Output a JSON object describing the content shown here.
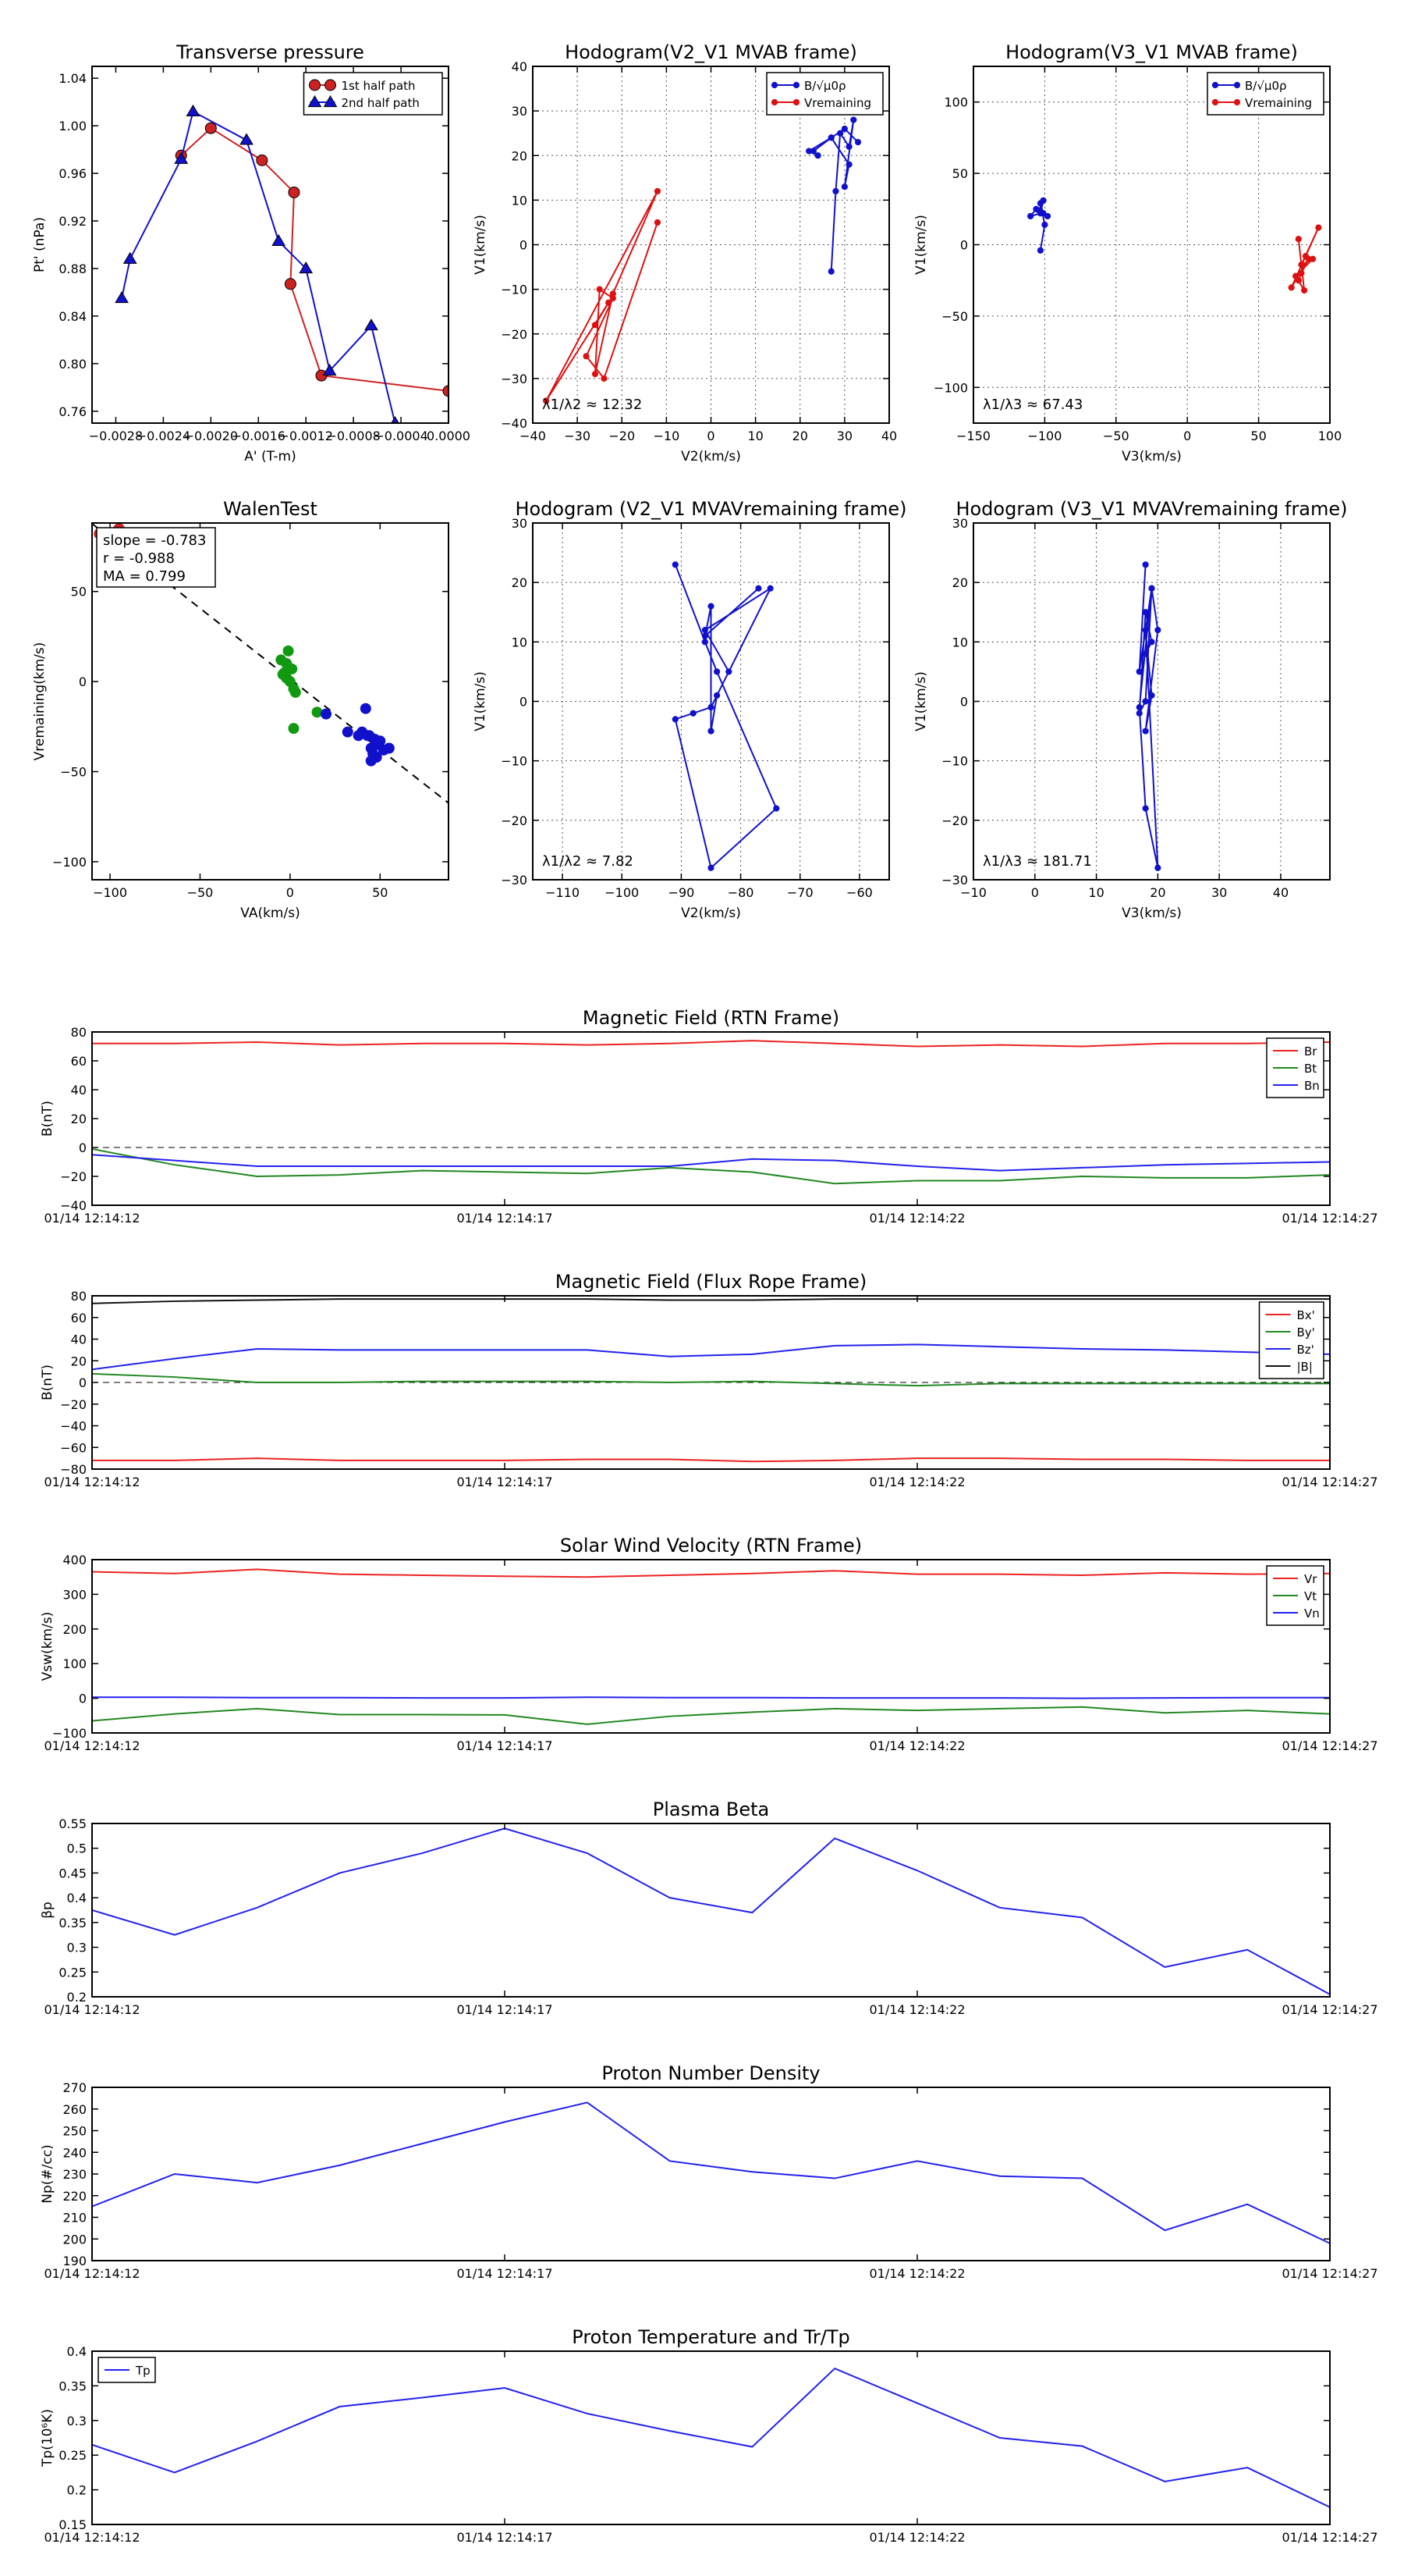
{
  "figure": {
    "time_ticks": [
      "01/14 12:14:12",
      "01/14 12:14:17",
      "01/14 12:14:22",
      "01/14 12:14:27"
    ]
  },
  "chart_data": [
    {
      "id": "pt",
      "type": "line",
      "title": "Transverse pressure",
      "xlabel": "A' (T-m)",
      "ylabel": "Pt' (nPa)",
      "xlim": [
        -0.003,
        0.0
      ],
      "ylim": [
        0.75,
        1.05
      ],
      "xticks": [
        -0.0028,
        -0.0024,
        -0.002,
        -0.0016,
        -0.0012,
        -0.0008,
        -0.0004,
        0.0
      ],
      "xtick_labels": [
        "−0.0028",
        "−0.0024",
        "−0.0020",
        "−0.0016",
        "−0.0012",
        "−0.0008",
        "−0.0004",
        "0.0000"
      ],
      "yticks": [
        0.76,
        0.8,
        0.84,
        0.88,
        0.92,
        0.96,
        1.0,
        1.04
      ],
      "ytick_labels": [
        "0.76",
        "0.80",
        "0.84",
        "0.88",
        "0.92",
        "0.96",
        "1.00",
        "1.04"
      ],
      "legend": "top-right",
      "series": [
        {
          "name": "1st half path",
          "color": "#cc2222",
          "marker": "circle",
          "x": [
            -0.00225,
            -0.002,
            -0.00157,
            -0.0013,
            -0.00133,
            -0.00107,
            0.0
          ],
          "y": [
            0.975,
            0.998,
            0.971,
            0.944,
            0.867,
            0.79,
            0.777
          ]
        },
        {
          "name": "2nd half path",
          "color": "#1111cc",
          "marker": "triangle",
          "x": [
            -0.00275,
            -0.00268,
            -0.00225,
            -0.00215,
            -0.0017,
            -0.00143,
            -0.0012,
            -0.001,
            -0.00065,
            -0.00045
          ],
          "y": [
            0.855,
            0.888,
            0.972,
            1.012,
            0.988,
            0.903,
            0.88,
            0.794,
            0.832,
            0.75
          ]
        }
      ]
    },
    {
      "id": "hodo1",
      "type": "line",
      "title": "Hodogram(V2_V1 MVAB frame)",
      "xlabel": "V2(km/s)",
      "ylabel": "V1(km/s)",
      "xlim": [
        -40,
        40
      ],
      "ylim": [
        -40,
        40
      ],
      "xticks": [
        -40,
        -30,
        -20,
        -10,
        0,
        10,
        20,
        30,
        40
      ],
      "yticks": [
        -40,
        -30,
        -20,
        -10,
        0,
        10,
        20,
        30,
        40
      ],
      "grid": true,
      "legend": "top-right",
      "annotation": "λ1/λ2 ≈ 12.32",
      "series": [
        {
          "name": "B/√μ0ρ",
          "color": "#1111cc",
          "x": [
            27,
            28,
            29,
            31,
            32,
            30,
            31,
            27,
            22,
            24,
            23,
            27,
            30,
            33
          ],
          "y": [
            -6,
            12,
            25,
            22,
            28,
            13,
            18,
            24,
            21,
            20,
            21,
            24,
            26,
            23
          ]
        },
        {
          "name": "Vremaining",
          "color": "#dd1111",
          "x": [
            -12,
            -24,
            -28,
            -22,
            -25,
            -26,
            -22,
            -12,
            -37,
            -23,
            -26
          ],
          "y": [
            5,
            -30,
            -25,
            -12,
            -10,
            -29,
            -11,
            12,
            -35,
            -13,
            -18
          ]
        }
      ]
    },
    {
      "id": "hodo2",
      "type": "line",
      "title": "Hodogram(V3_V1 MVAB frame)",
      "xlabel": "V3(km/s)",
      "ylabel": "V1(km/s)",
      "xlim": [
        -150,
        100
      ],
      "ylim": [
        -125,
        125
      ],
      "xticks": [
        -150,
        -100,
        -50,
        0,
        50,
        100
      ],
      "yticks": [
        -100,
        -50,
        0,
        50,
        100
      ],
      "grid": true,
      "legend": "top-right",
      "annotation": "λ1/λ3 ≈ 67.43",
      "series": [
        {
          "name": "B/√μ0ρ",
          "color": "#1111cc",
          "x": [
            -103,
            -100,
            -103,
            -101,
            -98,
            -106,
            -110,
            -103,
            -101,
            -104
          ],
          "y": [
            -4,
            14,
            29,
            22,
            20,
            25,
            20,
            22,
            31,
            24
          ]
        },
        {
          "name": "Vremaining",
          "color": "#dd1111",
          "x": [
            78,
            82,
            76,
            88,
            80,
            92,
            83,
            73,
            85,
            80,
            78
          ],
          "y": [
            4,
            -32,
            -22,
            -10,
            -14,
            12,
            -8,
            -30,
            -10,
            -20,
            -25
          ]
        }
      ]
    },
    {
      "id": "walen",
      "type": "scatter",
      "title": "WalenTest",
      "xlabel": "VA(km/s)",
      "ylabel": "Vremaining(km/s)",
      "xlim": [
        -110,
        88
      ],
      "ylim": [
        -110,
        88
      ],
      "xticks": [
        -100,
        -50,
        0,
        50
      ],
      "yticks": [
        -100,
        -50,
        0,
        50
      ],
      "annotation": [
        "slope = -0.783",
        "r = -0.988",
        "MA = 0.799"
      ],
      "fit": {
        "slope": -0.783,
        "intercept": 1.5
      },
      "series": [
        {
          "name": "red",
          "color": "#cc2222",
          "x": [
            -106,
            -95,
            -100
          ],
          "y": [
            82,
            85,
            80
          ]
        },
        {
          "name": "green",
          "color": "#119911",
          "x": [
            -5,
            -2,
            -3,
            -2,
            0,
            2,
            3,
            -1,
            1,
            -4,
            15,
            2
          ],
          "y": [
            12,
            10,
            5,
            2,
            0,
            -4,
            -6,
            17,
            7,
            4,
            -17,
            -26
          ]
        },
        {
          "name": "blue",
          "color": "#1111cc",
          "x": [
            20,
            32,
            38,
            40,
            42,
            44,
            45,
            46,
            47,
            48,
            49,
            50,
            52,
            45,
            43,
            55
          ],
          "y": [
            -18,
            -28,
            -30,
            -28,
            -15,
            -30,
            -37,
            -40,
            -32,
            -42,
            -35,
            -33,
            -38,
            -44,
            -30,
            -37
          ]
        }
      ]
    },
    {
      "id": "hodo3",
      "type": "line",
      "title": "Hodogram (V2_V1 MVAVremaining frame)",
      "xlabel": "V2(km/s)",
      "ylabel": "V1(km/s)",
      "xlim": [
        -115,
        -55
      ],
      "ylim": [
        -30,
        30
      ],
      "xticks": [
        -110,
        -100,
        -90,
        -80,
        -70,
        -60
      ],
      "yticks": [
        -30,
        -20,
        -10,
        0,
        10,
        20,
        30
      ],
      "grid": true,
      "annotation": "λ1/λ2 ≈ 7.82",
      "series": [
        {
          "name": "B",
          "color": "#1111cc",
          "x": [
            -91,
            -86,
            -84,
            -74,
            -85,
            -91,
            -88,
            -85,
            -82,
            -86,
            -75,
            -84,
            -85,
            -85,
            -86,
            -77
          ],
          "y": [
            23,
            10,
            5,
            -18,
            -28,
            -3,
            -2,
            -1,
            5,
            12,
            19,
            1,
            -5,
            16,
            11,
            19
          ]
        }
      ]
    },
    {
      "id": "hodo4",
      "type": "line",
      "title": "Hodogram (V3_V1 MVAVremaining frame)",
      "xlabel": "V3(km/s)",
      "ylabel": "V1(km/s)",
      "xlim": [
        -10,
        48
      ],
      "ylim": [
        -30,
        30
      ],
      "xticks": [
        -10,
        0,
        10,
        20,
        30,
        40
      ],
      "yticks": [
        -30,
        -20,
        -10,
        0,
        10,
        20,
        30
      ],
      "grid": true,
      "annotation": "λ1/λ3 ≈ 181.71",
      "series": [
        {
          "name": "B",
          "color": "#1111cc",
          "x": [
            18,
            17,
            19,
            17,
            18,
            20,
            18,
            19,
            18,
            20,
            19,
            18,
            17,
            18,
            19,
            18
          ],
          "y": [
            23,
            5,
            19,
            -1,
            -18,
            -28,
            12,
            1,
            -5,
            12,
            19,
            0,
            -2,
            15,
            10,
            8
          ]
        }
      ]
    },
    {
      "id": "brtn",
      "type": "line",
      "title": "Magnetic Field (RTN Frame)",
      "ylabel": "B(nT)",
      "ylim": [
        -40,
        80
      ],
      "yticks": [
        -40,
        -20,
        0,
        20,
        40,
        60,
        80
      ],
      "x": [
        0,
        1,
        2,
        3,
        4,
        5,
        6,
        7,
        8,
        9,
        10,
        11,
        12,
        13,
        14,
        15
      ],
      "xticks": [
        0,
        5,
        10,
        15
      ],
      "zero_line": true,
      "legend": "top-right",
      "series": [
        {
          "name": "Br",
          "color": "#ee2222",
          "values": [
            72,
            72,
            73,
            71,
            72,
            72,
            71,
            72,
            74,
            72,
            70,
            71,
            70,
            72,
            72,
            73
          ]
        },
        {
          "name": "Bt",
          "color": "#228822",
          "values": [
            -1,
            -12,
            -20,
            -19,
            -16,
            -17,
            -18,
            -14,
            -17,
            -25,
            -23,
            -23,
            -20,
            -21,
            -21,
            -19
          ]
        },
        {
          "name": "Bn",
          "color": "#2222ee",
          "values": [
            -5,
            -9,
            -13,
            -13,
            -13,
            -13,
            -13,
            -13,
            -8,
            -9,
            -13,
            -16,
            -14,
            -12,
            -11,
            -10
          ]
        }
      ]
    },
    {
      "id": "bfr",
      "type": "line",
      "title": "Magnetic Field (Flux Rope Frame)",
      "ylabel": "B(nT)",
      "ylim": [
        -80,
        80
      ],
      "yticks": [
        -80,
        -60,
        -40,
        -20,
        0,
        20,
        40,
        60,
        80
      ],
      "x": [
        0,
        1,
        2,
        3,
        4,
        5,
        6,
        7,
        8,
        9,
        10,
        11,
        12,
        13,
        14,
        15
      ],
      "xticks": [
        0,
        5,
        10,
        15
      ],
      "zero_line": true,
      "legend": "top-right",
      "series": [
        {
          "name": "Bx'",
          "color": "#ee2222",
          "values": [
            -72,
            -72,
            -70,
            -72,
            -72,
            -72,
            -71,
            -71,
            -73,
            -72,
            -70,
            -70,
            -71,
            -71,
            -72,
            -72
          ]
        },
        {
          "name": "By'",
          "color": "#228822",
          "values": [
            8,
            5,
            0,
            0,
            1,
            1,
            1,
            0,
            1,
            -1,
            -3,
            -1,
            -1,
            -1,
            -1,
            -1
          ]
        },
        {
          "name": "Bz'",
          "color": "#2222ee",
          "values": [
            12,
            22,
            31,
            30,
            30,
            30,
            30,
            24,
            26,
            34,
            35,
            33,
            31,
            30,
            28,
            26
          ]
        },
        {
          "name": "|B|",
          "color": "#111111",
          "values": [
            73,
            75,
            76,
            77,
            77,
            77,
            77,
            76,
            76,
            77,
            77,
            77,
            77,
            77,
            77,
            77
          ]
        }
      ]
    },
    {
      "id": "vsw",
      "type": "line",
      "title": "Solar Wind Velocity (RTN Frame)",
      "ylabel": "Vsw(km/s)",
      "ylim": [
        -100,
        400
      ],
      "yticks": [
        -100,
        0,
        100,
        200,
        300,
        400
      ],
      "x": [
        0,
        1,
        2,
        3,
        4,
        5,
        6,
        7,
        8,
        9,
        10,
        11,
        12,
        13,
        14,
        15
      ],
      "xticks": [
        0,
        5,
        10,
        15
      ],
      "legend": "top-right",
      "series": [
        {
          "name": "Vr",
          "color": "#ee2222",
          "values": [
            365,
            360,
            372,
            358,
            355,
            352,
            350,
            355,
            360,
            368,
            358,
            358,
            355,
            362,
            358,
            360
          ]
        },
        {
          "name": "Vt",
          "color": "#228822",
          "values": [
            -65,
            -45,
            -30,
            -47,
            -47,
            -48,
            -75,
            -52,
            -40,
            -30,
            -35,
            -30,
            -25,
            -42,
            -35,
            -45
          ]
        },
        {
          "name": "Vn",
          "color": "#2222ee",
          "values": [
            3,
            3,
            2,
            2,
            1,
            1,
            3,
            2,
            2,
            1,
            1,
            1,
            0,
            1,
            2,
            2
          ]
        }
      ]
    },
    {
      "id": "beta",
      "type": "line",
      "title": "Plasma Beta",
      "ylabel": "βp",
      "ylim": [
        0.2,
        0.55
      ],
      "yticks": [
        0.2,
        0.25,
        0.3,
        0.35,
        0.4,
        0.45,
        0.5,
        0.55
      ],
      "x": [
        0,
        1,
        2,
        3,
        4,
        5,
        6,
        7,
        8,
        9,
        10,
        11,
        12,
        13,
        14,
        15
      ],
      "xticks": [
        0,
        5,
        10,
        15
      ],
      "series": [
        {
          "name": "beta",
          "color": "#2222ee",
          "values": [
            0.375,
            0.325,
            0.38,
            0.45,
            0.49,
            0.54,
            0.49,
            0.4,
            0.37,
            0.52,
            0.455,
            0.38,
            0.36,
            0.26,
            0.295,
            0.205
          ]
        }
      ]
    },
    {
      "id": "np",
      "type": "line",
      "title": "Proton Number Density",
      "ylabel": "Np(#/cc)",
      "ylim": [
        190,
        270
      ],
      "yticks": [
        190,
        200,
        210,
        220,
        230,
        240,
        250,
        260,
        270
      ],
      "x": [
        0,
        1,
        2,
        3,
        4,
        5,
        6,
        7,
        8,
        9,
        10,
        11,
        12,
        13,
        14,
        15
      ],
      "xticks": [
        0,
        5,
        10,
        15
      ],
      "series": [
        {
          "name": "Np",
          "color": "#2222ee",
          "values": [
            215,
            230,
            226,
            234,
            244,
            254,
            263,
            236,
            231,
            228,
            236,
            229,
            228,
            204,
            216,
            198
          ]
        }
      ]
    },
    {
      "id": "tp",
      "type": "line",
      "title": "Proton Temperature and Tr/Tp",
      "ylabel": "Tp(10⁶K)",
      "ylim": [
        0.15,
        0.4
      ],
      "yticks": [
        0.15,
        0.2,
        0.25,
        0.3,
        0.35,
        0.4
      ],
      "x": [
        0,
        1,
        2,
        3,
        4,
        5,
        6,
        7,
        8,
        9,
        10,
        11,
        12,
        13,
        14,
        15
      ],
      "xticks": [
        0,
        5,
        10,
        15
      ],
      "legend": "top-left",
      "series": [
        {
          "name": "Tp",
          "color": "#2222ee",
          "values": [
            0.265,
            0.225,
            0.27,
            0.32,
            0.333,
            0.347,
            0.31,
            0.285,
            0.262,
            0.375,
            0.325,
            0.275,
            0.263,
            0.212,
            0.232,
            0.175
          ]
        }
      ]
    }
  ]
}
